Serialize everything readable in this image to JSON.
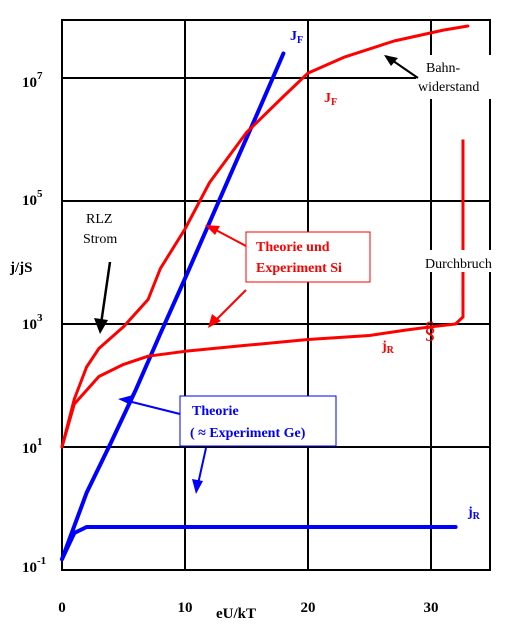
{
  "chart_data": {
    "type": "line",
    "title": "",
    "xlabel": "eU/kT",
    "ylabel": "j/jS",
    "y_scale": "log",
    "xlim": [
      0,
      35
    ],
    "x_ticks": [
      0,
      10,
      20,
      30
    ],
    "x_tick_labels": [
      "0",
      "10",
      "20",
      "30"
    ],
    "y_ticks": [
      0.1,
      10,
      1000,
      100000,
      10000000
    ],
    "y_tick_labels": [
      {
        "base": "10",
        "exp": "-1"
      },
      {
        "base": "10",
        "exp": "1"
      },
      {
        "base": "10",
        "exp": "3"
      },
      {
        "base": "10",
        "exp": "5"
      },
      {
        "base": "10",
        "exp": "7"
      }
    ],
    "grid": true,
    "colors": {
      "theory": "#0000ff",
      "experiment": "#ff0000",
      "grid": "#000000"
    },
    "series": [
      {
        "name": "jF",
        "label_main": "J",
        "label_sub": "F",
        "color": "#0000ff",
        "points": [
          [
            0,
            0.15
          ],
          [
            2,
            1.8
          ],
          [
            4,
            12
          ],
          [
            6,
            85
          ],
          [
            8,
            700
          ],
          [
            10,
            5500
          ],
          [
            12,
            45000
          ],
          [
            14,
            370000
          ],
          [
            16,
            3000000
          ],
          [
            18,
            25000000
          ]
        ]
      },
      {
        "name": "jR",
        "label_main": "j",
        "label_sub": "R",
        "color": "#0000ff",
        "points": [
          [
            0,
            0.15
          ],
          [
            1,
            0.4
          ],
          [
            2,
            0.5
          ],
          [
            3,
            0.5
          ],
          [
            10,
            0.5
          ],
          [
            20,
            0.5
          ],
          [
            30,
            0.5
          ],
          [
            32,
            0.5
          ]
        ]
      },
      {
        "name": "JF",
        "label_main": "J",
        "label_sub": "F",
        "color": "#ff0000",
        "points": [
          [
            0,
            10
          ],
          [
            1,
            60
          ],
          [
            2,
            200
          ],
          [
            3,
            400
          ],
          [
            5,
            900
          ],
          [
            7,
            2500
          ],
          [
            8,
            8000
          ],
          [
            10,
            35000
          ],
          [
            12,
            200000
          ],
          [
            15,
            1300000
          ],
          [
            18,
            5000000
          ],
          [
            20,
            12000000
          ],
          [
            23,
            22000000
          ],
          [
            27,
            40000000
          ],
          [
            31,
            60000000
          ],
          [
            33,
            70000000
          ]
        ]
      },
      {
        "name": "jR",
        "label_main": "j",
        "label_sub": "R",
        "color": "#ff0000",
        "points": [
          [
            0,
            10
          ],
          [
            1,
            50
          ],
          [
            3,
            140
          ],
          [
            5,
            220
          ],
          [
            7,
            300
          ],
          [
            10,
            360
          ],
          [
            15,
            450
          ],
          [
            20,
            560
          ],
          [
            25,
            650
          ],
          [
            28,
            800
          ],
          [
            30,
            900
          ],
          [
            32,
            1000
          ]
        ]
      }
    ],
    "breakdown_labels": {
      "jR_marker": "§",
      "jR_marker2": "§"
    },
    "annotations": {
      "bahn": [
        "Bahn-",
        "widerstand"
      ],
      "rlz": [
        "RLZ",
        "Strom"
      ],
      "theorie_si": [
        "Theorie und",
        "Experiment Si"
      ],
      "durchbruch": "Durchbruch",
      "theorie_ge": [
        "Theorie",
        "( ≈ Experiment Ge)"
      ]
    }
  }
}
